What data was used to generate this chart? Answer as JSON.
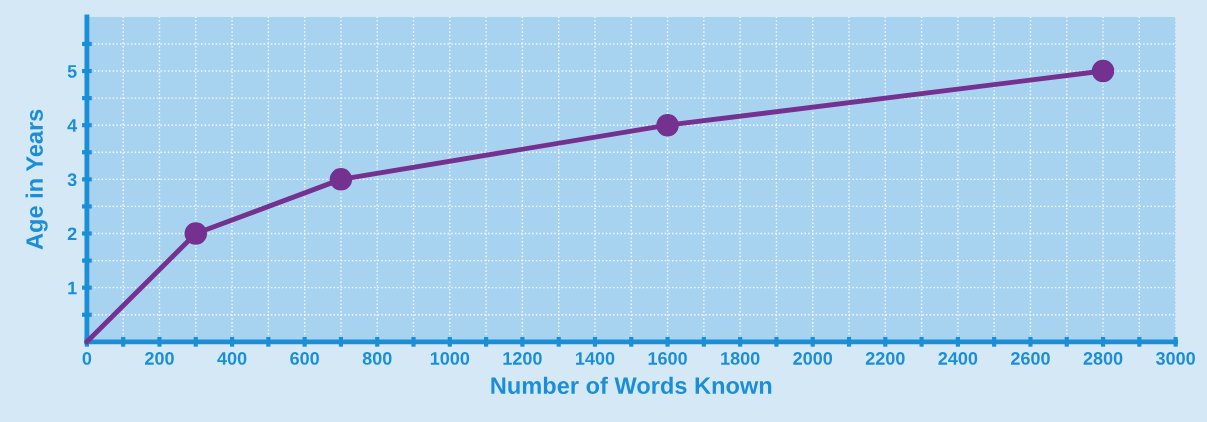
{
  "chart_data": {
    "type": "line",
    "xlabel": "Number of Words Known",
    "ylabel": "Age in Years",
    "x": [
      0,
      300,
      700,
      1600,
      2800
    ],
    "series": [
      {
        "color": "#74318f",
        "values": [
          0,
          2,
          3,
          4,
          5
        ],
        "marker": "none"
      },
      {
        "type": "scatter",
        "color": "#74318f",
        "x": [
          300,
          700,
          1600,
          2800
        ],
        "values": [
          2,
          3,
          4,
          5
        ],
        "marker": "circle"
      }
    ],
    "xlim": [
      0,
      3000
    ],
    "ylim": [
      0,
      6
    ],
    "xticks": [
      0,
      {
        "value": 100,
        "label": null
      },
      200,
      {
        "value": 300,
        "label": null
      },
      400,
      {
        "value": 500,
        "label": null
      },
      600,
      {
        "value": 700,
        "label": null
      },
      800,
      {
        "value": 900,
        "label": null
      },
      1000,
      {
        "value": 1100,
        "label": null
      },
      1200,
      {
        "value": 1300,
        "label": null
      },
      1400,
      {
        "value": 1500,
        "label": null
      },
      1600,
      {
        "value": 1700,
        "label": null
      },
      1800,
      {
        "value": 1900,
        "label": null
      },
      2000,
      {
        "value": 2100,
        "label": null
      },
      2200,
      {
        "value": 2300,
        "label": null
      },
      2400,
      {
        "value": 2500,
        "label": null
      },
      2600,
      {
        "value": 2700,
        "label": null
      },
      2800,
      {
        "value": 2900,
        "label": null
      },
      3000
    ],
    "yticks": [
      {
        "value": 0.5,
        "label": null
      },
      1,
      {
        "value": 1.5,
        "label": null
      },
      2,
      {
        "value": 2.5,
        "label": null
      },
      3,
      {
        "value": 3.5,
        "label": null
      },
      4,
      {
        "value": 4.5,
        "label": null
      },
      5,
      {
        "value": 5.5,
        "label": null
      }
    ],
    "grid": true,
    "legend": false
  }
}
